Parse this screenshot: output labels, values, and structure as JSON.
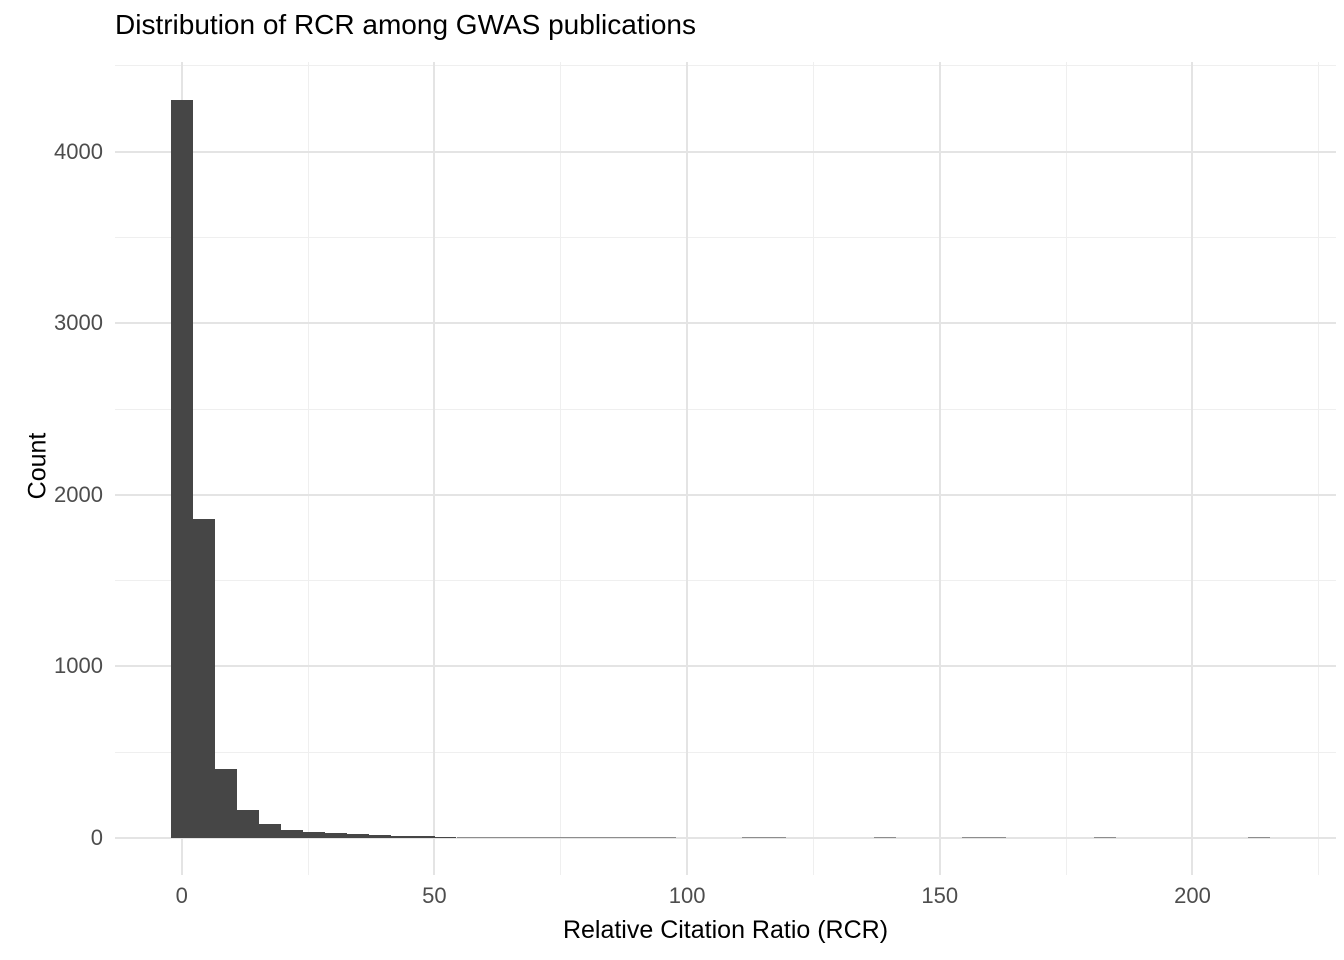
{
  "chart_data": {
    "type": "bar",
    "subtype": "histogram",
    "title": "Distribution of RCR among GWAS publications",
    "xlabel": "Relative Citation Ratio (RCR)",
    "ylabel": "Count",
    "x_ticks": [
      0,
      50,
      100,
      150,
      200
    ],
    "x_minor_gridlines": [
      25,
      75,
      125,
      175,
      225
    ],
    "y_ticks": [
      0,
      1000,
      2000,
      3000,
      4000
    ],
    "y_minor_gridlines": [
      500,
      1500,
      2500,
      3500,
      4500
    ],
    "xlim": [
      -13.2,
      228.4
    ],
    "ylim": [
      -216,
      4523
    ],
    "grid": true,
    "legend": false,
    "bin_width": 4.35,
    "bins": [
      {
        "center": 0,
        "count": 4300
      },
      {
        "center": 4.35,
        "count": 1860
      },
      {
        "center": 8.7,
        "count": 400
      },
      {
        "center": 13.05,
        "count": 160
      },
      {
        "center": 17.4,
        "count": 80
      },
      {
        "center": 21.75,
        "count": 48
      },
      {
        "center": 26.1,
        "count": 37
      },
      {
        "center": 30.45,
        "count": 28
      },
      {
        "center": 34.8,
        "count": 24
      },
      {
        "center": 39.15,
        "count": 16
      },
      {
        "center": 43.5,
        "count": 12
      },
      {
        "center": 47.85,
        "count": 9
      },
      {
        "center": 52.2,
        "count": 6
      },
      {
        "center": 56.55,
        "count": 5
      },
      {
        "center": 60.9,
        "count": 3
      },
      {
        "center": 65.25,
        "count": 3
      },
      {
        "center": 69.6,
        "count": 3
      },
      {
        "center": 73.95,
        "count": 2
      },
      {
        "center": 78.3,
        "count": 1
      },
      {
        "center": 82.65,
        "count": 2
      },
      {
        "center": 87.0,
        "count": 1
      },
      {
        "center": 91.35,
        "count": 1
      },
      {
        "center": 95.7,
        "count": 2
      },
      {
        "center": 113.1,
        "count": 1
      },
      {
        "center": 117.45,
        "count": 1
      },
      {
        "center": 139.2,
        "count": 1
      },
      {
        "center": 156.6,
        "count": 1
      },
      {
        "center": 160.95,
        "count": 1
      },
      {
        "center": 182.7,
        "count": 1
      },
      {
        "center": 213.15,
        "count": 1
      }
    ],
    "colors": {
      "bar": "#464646",
      "grid_major": "#E4E4E4",
      "grid_minor": "#EFEFEF",
      "tick_label": "#4D4D4D",
      "text": "#000000",
      "background": "#FFFFFF"
    }
  }
}
